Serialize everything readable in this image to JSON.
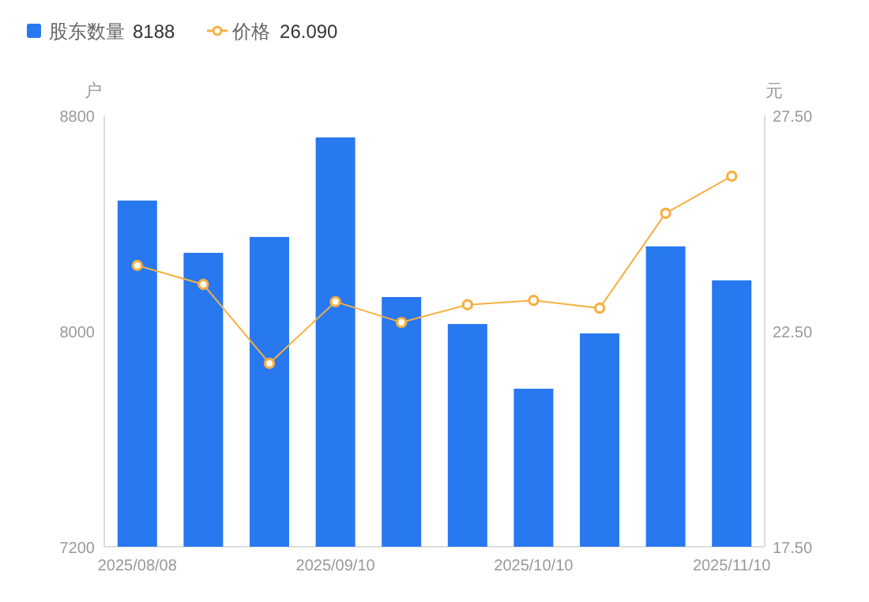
{
  "chart_data": {
    "type": "bar",
    "categories": [
      "2025/08/08",
      null,
      null,
      "2025/09/10",
      null,
      null,
      "2025/10/10",
      null,
      null,
      "2025/11/10"
    ],
    "series": [
      {
        "name": "股东数量",
        "color": "#2878f0",
        "values": [
          8484,
          8290,
          8349,
          8718,
          8126,
          8026,
          7786,
          7991,
          8314,
          8188
        ]
      },
      {
        "name": "价格",
        "color": "#f5b041",
        "type": "line",
        "axis": "y2",
        "values": [
          24.02,
          23.58,
          21.75,
          23.18,
          22.7,
          23.11,
          23.21,
          23.03,
          25.23,
          26.09
        ]
      }
    ],
    "ylabel": "户",
    "y2label": "元",
    "ylim": [
      7200,
      8800
    ],
    "yticks": [
      7200,
      8000,
      8800
    ],
    "y2lim": [
      17.5,
      27.5
    ],
    "y2ticks": [
      {
        "value": 17.5,
        "label": "17.50"
      },
      {
        "value": 22.5,
        "label": "22.50"
      },
      {
        "value": 27.5,
        "label": "27.50"
      }
    ],
    "marker": "circle",
    "legend": "top left",
    "grid": false,
    "annotations": [
      "8188",
      "26.090"
    ]
  }
}
